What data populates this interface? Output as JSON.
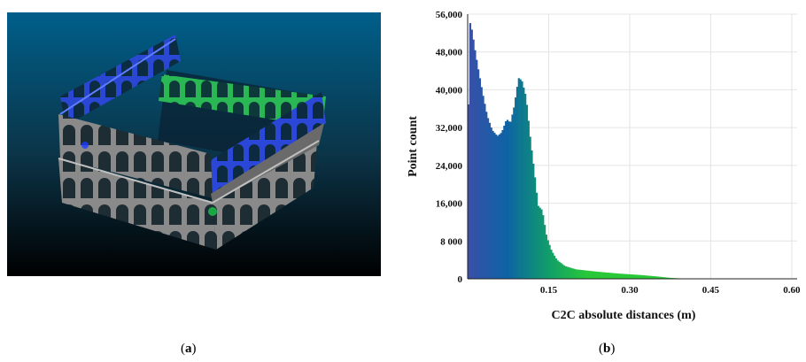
{
  "captions": {
    "a": "a",
    "b": "b"
  },
  "point_cloud_view": {
    "background_top": "#005f8a",
    "background_bottom": "#000000",
    "structure_color": "#9a9a9a",
    "highlight_colors": [
      "#1a3cff",
      "#18c84a"
    ]
  },
  "chart_data": {
    "type": "histogram",
    "title": "",
    "xlabel": "C2C absolute distances (m)",
    "ylabel": "Point count",
    "xlim": [
      0,
      0.61
    ],
    "ylim": [
      0,
      56000
    ],
    "x_ticks": [
      0.15,
      0.3,
      0.45,
      0.6
    ],
    "x_tick_labels": [
      "0.15",
      "0.30",
      "0.45",
      "0.60"
    ],
    "y_ticks": [
      0,
      8000,
      16000,
      24000,
      32000,
      40000,
      48000,
      56000
    ],
    "y_tick_labels": [
      "0",
      "8 000",
      "16,000",
      "24,000",
      "32,000",
      "40,000",
      "48,000",
      "56,000"
    ],
    "grid": true,
    "color_scale": [
      "#3a4fa8",
      "#0d63a5",
      "#109c6b",
      "#28c838"
    ],
    "profile": [
      [
        0.0,
        19000
      ],
      [
        0.003,
        54800
      ],
      [
        0.008,
        52500
      ],
      [
        0.014,
        48000
      ],
      [
        0.02,
        44000
      ],
      [
        0.028,
        39000
      ],
      [
        0.036,
        34500
      ],
      [
        0.045,
        31500
      ],
      [
        0.055,
        30200
      ],
      [
        0.063,
        31000
      ],
      [
        0.072,
        33800
      ],
      [
        0.079,
        33000
      ],
      [
        0.086,
        36500
      ],
      [
        0.094,
        42500
      ],
      [
        0.1,
        42000
      ],
      [
        0.108,
        38500
      ],
      [
        0.116,
        29500
      ],
      [
        0.124,
        22000
      ],
      [
        0.13,
        15500
      ],
      [
        0.138,
        14500
      ],
      [
        0.146,
        9000
      ],
      [
        0.155,
        6000
      ],
      [
        0.165,
        4000
      ],
      [
        0.18,
        2700
      ],
      [
        0.2,
        2000
      ],
      [
        0.24,
        1500
      ],
      [
        0.28,
        1100
      ],
      [
        0.32,
        800
      ],
      [
        0.35,
        500
      ],
      [
        0.375,
        200
      ],
      [
        0.4,
        50
      ],
      [
        0.45,
        0
      ],
      [
        0.61,
        0
      ]
    ]
  }
}
